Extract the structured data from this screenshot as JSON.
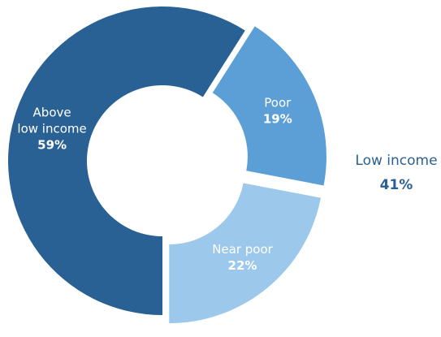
{
  "chart_data": {
    "type": "pie",
    "variant": "donut",
    "slices": [
      {
        "label_lines": [
          "Above",
          "low income"
        ],
        "value": 59,
        "value_label": "59%",
        "color": "#2a6194"
      },
      {
        "label_lines": [
          "Poor"
        ],
        "value": 19,
        "value_label": "19%",
        "color": "#5b9fd6",
        "exploded": true
      },
      {
        "label_lines": [
          "Near poor"
        ],
        "value": 22,
        "value_label": "22%",
        "color": "#9bc8eb",
        "exploded": true
      }
    ],
    "group_annotation": {
      "label": "Low income",
      "value_label": "41%",
      "color": "#2a6194",
      "members": [
        "Poor",
        "Near poor"
      ]
    }
  }
}
